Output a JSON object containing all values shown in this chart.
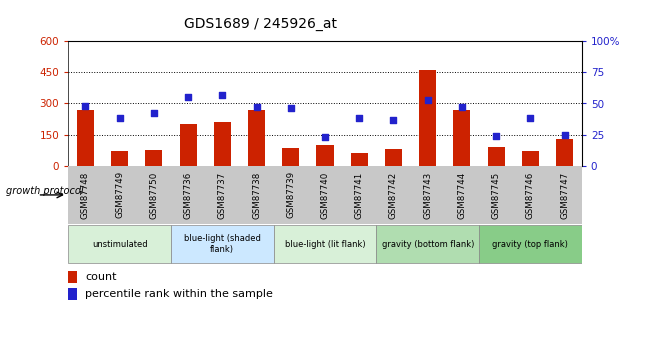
{
  "title": "GDS1689 / 245926_at",
  "samples": [
    "GSM87748",
    "GSM87749",
    "GSM87750",
    "GSM87736",
    "GSM87737",
    "GSM87738",
    "GSM87739",
    "GSM87740",
    "GSM87741",
    "GSM87742",
    "GSM87743",
    "GSM87744",
    "GSM87745",
    "GSM87746",
    "GSM87747"
  ],
  "counts": [
    270,
    70,
    75,
    200,
    210,
    270,
    85,
    100,
    60,
    80,
    460,
    270,
    90,
    70,
    130
  ],
  "percentiles": [
    48,
    38,
    42,
    55,
    57,
    47,
    46,
    23,
    38,
    37,
    53,
    47,
    24,
    38,
    25
  ],
  "ylim_left": [
    0,
    600
  ],
  "ylim_right": [
    0,
    100
  ],
  "yticks_left": [
    0,
    150,
    300,
    450,
    600
  ],
  "yticks_right": [
    0,
    25,
    50,
    75,
    100
  ],
  "bar_color": "#cc2200",
  "scatter_color": "#2222cc",
  "groups": [
    {
      "label": "unstimulated",
      "start": 0,
      "end": 3,
      "color": "#d8f0d8"
    },
    {
      "label": "blue-light (shaded\nflank)",
      "start": 3,
      "end": 6,
      "color": "#cce8ff"
    },
    {
      "label": "blue-light (lit flank)",
      "start": 6,
      "end": 9,
      "color": "#d8f0d8"
    },
    {
      "label": "gravity (bottom flank)",
      "start": 9,
      "end": 12,
      "color": "#b0ddb0"
    },
    {
      "label": "gravity (top flank)",
      "start": 12,
      "end": 15,
      "color": "#88cc88"
    }
  ],
  "legend_count_label": "count",
  "legend_pct_label": "percentile rank within the sample",
  "growth_protocol_label": "growth protocol",
  "left_axis_color": "#cc2200",
  "right_axis_color": "#2222cc",
  "tick_bg_color": "#c8c8c8"
}
